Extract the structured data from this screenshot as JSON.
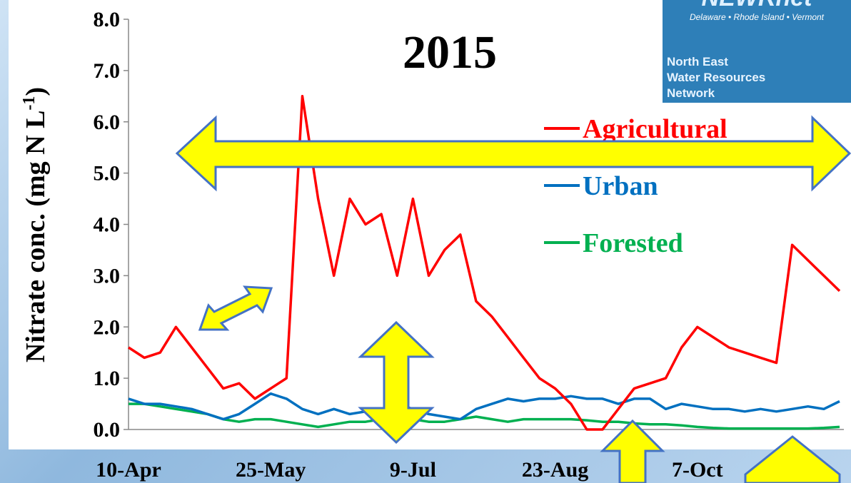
{
  "chart_data": {
    "type": "line",
    "title": "2015",
    "y_label": "Nitrate conc. (mg N L",
    "y_label_sup": "-1",
    "y_label_end": ")",
    "categories": [
      "10-Apr",
      null,
      null,
      null,
      null,
      null,
      null,
      null,
      null,
      "25-May",
      null,
      null,
      null,
      null,
      null,
      null,
      null,
      null,
      "9-Jul",
      null,
      null,
      null,
      null,
      null,
      null,
      null,
      null,
      "23-Aug",
      null,
      null,
      null,
      null,
      null,
      null,
      null,
      null,
      "7-Oct",
      null,
      null,
      null,
      null,
      null,
      null,
      null,
      null,
      null
    ],
    "series": [
      {
        "name": "Agricultural",
        "color": "#ff0000",
        "values": [
          1.6,
          1.4,
          1.5,
          2.0,
          1.6,
          1.2,
          0.8,
          0.9,
          0.6,
          0.8,
          1.0,
          6.5,
          4.5,
          3.0,
          4.5,
          4.0,
          4.2,
          3.0,
          4.5,
          3.0,
          3.5,
          3.8,
          2.5,
          2.2,
          1.8,
          1.4,
          1.0,
          0.8,
          0.5,
          0.0,
          0.0,
          0.4,
          0.8,
          0.9,
          1.0,
          1.6,
          2.0,
          1.8,
          1.6,
          1.5,
          1.4,
          1.3,
          3.6,
          3.3,
          3.0,
          2.7
        ]
      },
      {
        "name": "Urban",
        "color": "#0070c0",
        "values": [
          0.6,
          0.5,
          0.5,
          0.45,
          0.4,
          0.3,
          0.2,
          0.3,
          0.5,
          0.7,
          0.6,
          0.4,
          0.3,
          0.4,
          0.3,
          0.35,
          0.4,
          0.5,
          0.4,
          0.3,
          0.25,
          0.2,
          0.4,
          0.5,
          0.6,
          0.55,
          0.6,
          0.6,
          0.65,
          0.6,
          0.6,
          0.5,
          0.6,
          0.6,
          0.4,
          0.5,
          0.45,
          0.4,
          0.4,
          0.35,
          0.4,
          0.35,
          0.4,
          0.45,
          0.4,
          0.55
        ]
      },
      {
        "name": "Forested",
        "color": "#00b050",
        "values": [
          0.5,
          0.5,
          0.45,
          0.4,
          0.35,
          0.3,
          0.2,
          0.15,
          0.2,
          0.2,
          0.15,
          0.1,
          0.05,
          0.1,
          0.15,
          0.15,
          0.2,
          0.2,
          0.2,
          0.15,
          0.15,
          0.2,
          0.25,
          0.2,
          0.15,
          0.2,
          0.2,
          0.2,
          0.2,
          0.18,
          0.15,
          0.15,
          0.12,
          0.1,
          0.1,
          0.08,
          0.05,
          0.03,
          0.02,
          0.02,
          0.02,
          0.02,
          0.02,
          0.02,
          0.03,
          0.05
        ]
      }
    ],
    "ylim": [
      0,
      8
    ],
    "yticks": [
      {
        "value": 0,
        "label": "0.0"
      },
      {
        "value": 1,
        "label": "1.0"
      },
      {
        "value": 2,
        "label": "2.0"
      },
      {
        "value": 3,
        "label": "3.0"
      },
      {
        "value": 4,
        "label": "4.0"
      },
      {
        "value": 5,
        "label": "5.0"
      },
      {
        "value": 6,
        "label": "6.0"
      },
      {
        "value": 7,
        "label": "7.0"
      },
      {
        "value": 8,
        "label": "8.0"
      }
    ]
  },
  "logo": {
    "name": "NEWRnet",
    "states": "Delaware • Rhode Island • Vermont",
    "line1": "North East",
    "line2": "Water Resources",
    "line3": "Network"
  }
}
